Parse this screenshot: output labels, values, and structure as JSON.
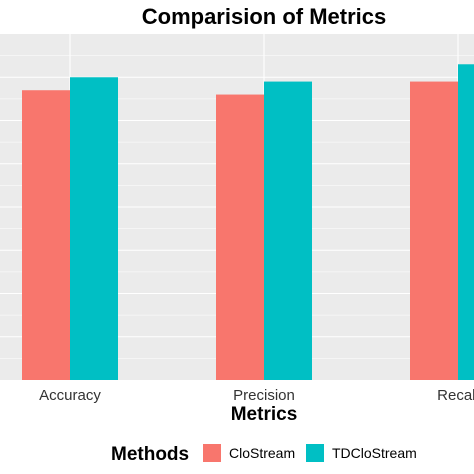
{
  "chart_data": {
    "type": "bar",
    "title": "Comparision of Metrics",
    "xlabel": "Metrics",
    "ylabel": "",
    "categories": [
      "Accuracy",
      "Precision",
      "Recall"
    ],
    "series": [
      {
        "name": "CloStream",
        "values": [
          0.67,
          0.66,
          0.69
        ],
        "color": "#F8766D"
      },
      {
        "name": "TDCloStream",
        "values": [
          0.7,
          0.69,
          0.73
        ],
        "color": "#00BFC4"
      }
    ],
    "ylim": [
      0,
      0.8
    ],
    "grid": true,
    "legend": {
      "title": "Methods",
      "placement": "bottom"
    },
    "panel_background": "#EBEBEB",
    "gridline_color": "#FFFFFF"
  }
}
